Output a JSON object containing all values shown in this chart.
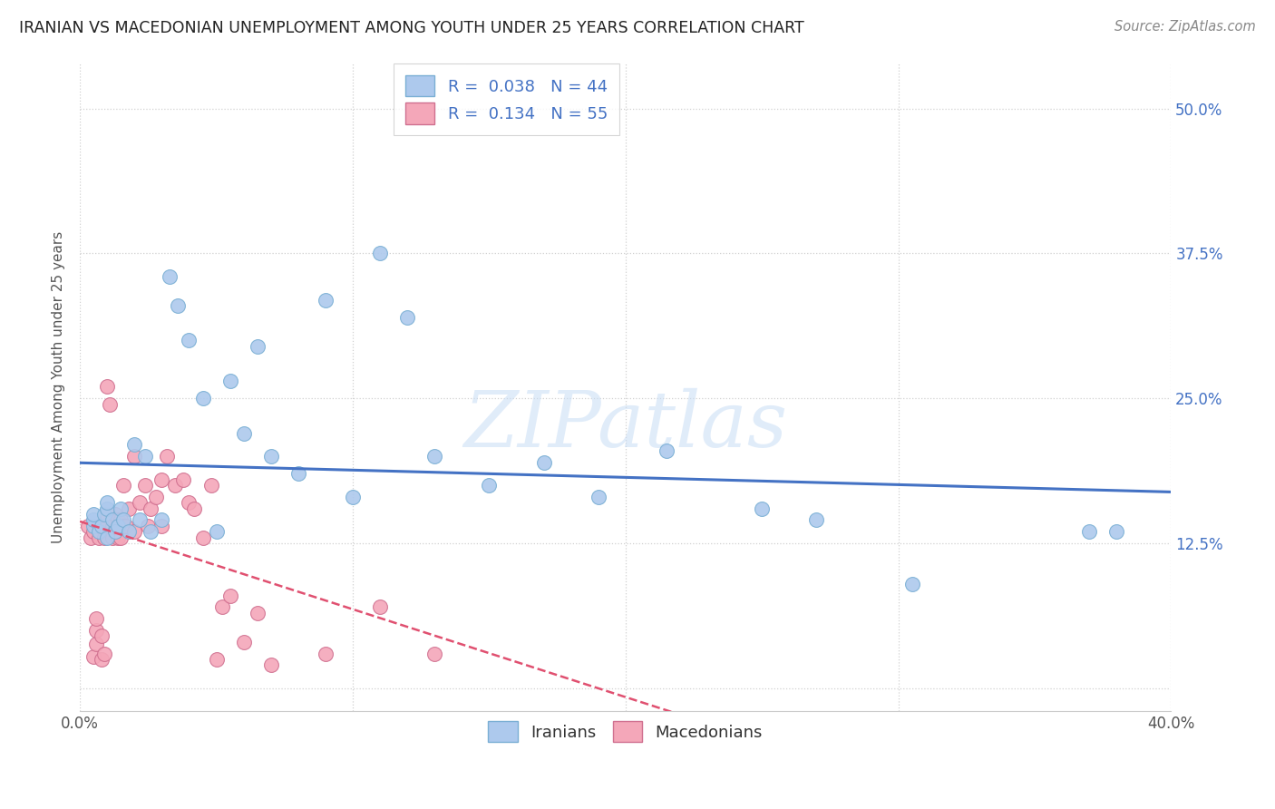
{
  "title": "IRANIAN VS MACEDONIAN UNEMPLOYMENT AMONG YOUTH UNDER 25 YEARS CORRELATION CHART",
  "source": "Source: ZipAtlas.com",
  "ylabel": "Unemployment Among Youth under 25 years",
  "xlim": [
    0.0,
    0.4
  ],
  "ylim": [
    -0.02,
    0.54
  ],
  "xticks": [
    0.0,
    0.1,
    0.2,
    0.3,
    0.4
  ],
  "xticklabels": [
    "0.0%",
    "",
    "",
    "",
    "40.0%"
  ],
  "ytick_positions": [
    0.0,
    0.125,
    0.25,
    0.375,
    0.5
  ],
  "yticklabels_right": [
    "",
    "12.5%",
    "25.0%",
    "37.5%",
    "50.0%"
  ],
  "background_color": "#ffffff",
  "grid_color": "#d0d0d0",
  "series": [
    {
      "name": "Iranians",
      "R": 0.038,
      "N": 44,
      "color": "#adc9ed",
      "line_color": "#4472c4",
      "marker_edge_color": "#7aafd4",
      "x": [
        0.005,
        0.005,
        0.005,
        0.007,
        0.008,
        0.009,
        0.01,
        0.01,
        0.01,
        0.012,
        0.013,
        0.014,
        0.015,
        0.016,
        0.018,
        0.02,
        0.022,
        0.024,
        0.026,
        0.03,
        0.033,
        0.036,
        0.04,
        0.045,
        0.05,
        0.055,
        0.06,
        0.065,
        0.07,
        0.08,
        0.09,
        0.1,
        0.11,
        0.12,
        0.13,
        0.15,
        0.17,
        0.19,
        0.215,
        0.25,
        0.27,
        0.305,
        0.37,
        0.38
      ],
      "y": [
        0.14,
        0.145,
        0.15,
        0.135,
        0.14,
        0.15,
        0.13,
        0.155,
        0.16,
        0.145,
        0.135,
        0.14,
        0.155,
        0.145,
        0.135,
        0.21,
        0.145,
        0.2,
        0.135,
        0.145,
        0.355,
        0.33,
        0.3,
        0.25,
        0.135,
        0.265,
        0.22,
        0.295,
        0.2,
        0.185,
        0.335,
        0.165,
        0.375,
        0.32,
        0.2,
        0.175,
        0.195,
        0.165,
        0.205,
        0.155,
        0.145,
        0.09,
        0.135,
        0.135
      ]
    },
    {
      "name": "Macedonians",
      "R": 0.134,
      "N": 55,
      "color": "#f4a7b9",
      "line_color": "#e05070",
      "marker_edge_color": "#d07090",
      "x": [
        0.003,
        0.004,
        0.005,
        0.005,
        0.006,
        0.006,
        0.006,
        0.007,
        0.007,
        0.008,
        0.008,
        0.009,
        0.009,
        0.01,
        0.01,
        0.01,
        0.011,
        0.011,
        0.012,
        0.012,
        0.013,
        0.013,
        0.014,
        0.014,
        0.015,
        0.015,
        0.016,
        0.016,
        0.017,
        0.018,
        0.02,
        0.02,
        0.022,
        0.024,
        0.025,
        0.026,
        0.028,
        0.03,
        0.03,
        0.032,
        0.035,
        0.038,
        0.04,
        0.042,
        0.045,
        0.048,
        0.05,
        0.052,
        0.055,
        0.06,
        0.065,
        0.07,
        0.09,
        0.11,
        0.13
      ],
      "y": [
        0.14,
        0.13,
        0.027,
        0.135,
        0.038,
        0.05,
        0.06,
        0.13,
        0.14,
        0.025,
        0.045,
        0.03,
        0.13,
        0.14,
        0.15,
        0.26,
        0.135,
        0.245,
        0.13,
        0.14,
        0.135,
        0.15,
        0.13,
        0.145,
        0.13,
        0.145,
        0.14,
        0.175,
        0.14,
        0.155,
        0.135,
        0.2,
        0.16,
        0.175,
        0.14,
        0.155,
        0.165,
        0.14,
        0.18,
        0.2,
        0.175,
        0.18,
        0.16,
        0.155,
        0.13,
        0.175,
        0.025,
        0.07,
        0.08,
        0.04,
        0.065,
        0.02,
        0.03,
        0.07,
        0.03
      ]
    }
  ]
}
